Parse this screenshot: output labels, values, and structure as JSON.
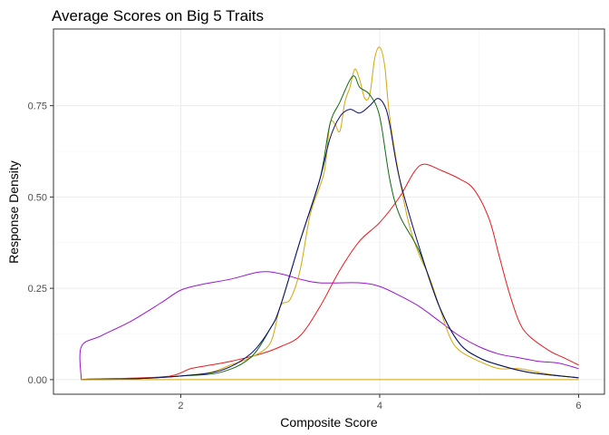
{
  "chart_data": {
    "type": "line",
    "title": "Average Scores on Big 5 Traits",
    "xlabel": "Composite Score",
    "ylabel": "Response Density",
    "xlim": [
      0.72,
      6.26
    ],
    "ylim": [
      -0.04,
      0.96
    ],
    "x_ticks": [
      2,
      4,
      6
    ],
    "y_ticks": [
      0.0,
      0.25,
      0.5,
      0.75
    ],
    "x_tick_labels": [
      "2",
      "4",
      "6"
    ],
    "y_tick_labels": [
      "0.00",
      "0.25",
      "0.50",
      "0.75"
    ],
    "grid": true,
    "legend": "none",
    "series": [
      {
        "name": "purple",
        "color": "#9b14d4",
        "points": [
          [
            1.0,
            0.0
          ],
          [
            1.0,
            0.09
          ],
          [
            1.2,
            0.12
          ],
          [
            1.5,
            0.16
          ],
          [
            1.8,
            0.21
          ],
          [
            2.0,
            0.245
          ],
          [
            2.2,
            0.26
          ],
          [
            2.5,
            0.275
          ],
          [
            2.8,
            0.295
          ],
          [
            3.0,
            0.29
          ],
          [
            3.2,
            0.275
          ],
          [
            3.4,
            0.265
          ],
          [
            3.8,
            0.265
          ],
          [
            4.0,
            0.255
          ],
          [
            4.2,
            0.23
          ],
          [
            4.4,
            0.2
          ],
          [
            4.6,
            0.16
          ],
          [
            4.8,
            0.12
          ],
          [
            5.0,
            0.09
          ],
          [
            5.2,
            0.07
          ],
          [
            5.4,
            0.06
          ],
          [
            5.6,
            0.05
          ],
          [
            5.8,
            0.045
          ],
          [
            6.0,
            0.03
          ]
        ]
      },
      {
        "name": "red",
        "color": "#e8191c",
        "points": [
          [
            1.0,
            0.0
          ],
          [
            1.1,
            0.002
          ],
          [
            1.5,
            0.004
          ],
          [
            1.9,
            0.01
          ],
          [
            2.1,
            0.03
          ],
          [
            2.3,
            0.04
          ],
          [
            2.5,
            0.05
          ],
          [
            2.8,
            0.07
          ],
          [
            3.0,
            0.09
          ],
          [
            3.2,
            0.12
          ],
          [
            3.4,
            0.2
          ],
          [
            3.6,
            0.3
          ],
          [
            3.8,
            0.38
          ],
          [
            4.0,
            0.43
          ],
          [
            4.2,
            0.5
          ],
          [
            4.35,
            0.57
          ],
          [
            4.45,
            0.59
          ],
          [
            4.6,
            0.575
          ],
          [
            4.8,
            0.55
          ],
          [
            4.95,
            0.52
          ],
          [
            5.1,
            0.44
          ],
          [
            5.2,
            0.34
          ],
          [
            5.3,
            0.24
          ],
          [
            5.4,
            0.16
          ],
          [
            5.5,
            0.12
          ],
          [
            5.7,
            0.08
          ],
          [
            5.85,
            0.06
          ],
          [
            6.0,
            0.04
          ]
        ]
      },
      {
        "name": "gold",
        "color": "#d4a60a",
        "points": [
          [
            1.0,
            0.0
          ],
          [
            1.5,
            0.002
          ],
          [
            2.0,
            0.01
          ],
          [
            2.3,
            0.02
          ],
          [
            2.5,
            0.04
          ],
          [
            2.7,
            0.06
          ],
          [
            2.9,
            0.1
          ],
          [
            3.0,
            0.2
          ],
          [
            3.1,
            0.22
          ],
          [
            3.2,
            0.3
          ],
          [
            3.3,
            0.45
          ],
          [
            3.4,
            0.53
          ],
          [
            3.45,
            0.58
          ],
          [
            3.5,
            0.7
          ],
          [
            3.55,
            0.7
          ],
          [
            3.6,
            0.68
          ],
          [
            3.65,
            0.76
          ],
          [
            3.7,
            0.8
          ],
          [
            3.75,
            0.85
          ],
          [
            3.8,
            0.82
          ],
          [
            3.85,
            0.77
          ],
          [
            3.9,
            0.78
          ],
          [
            3.95,
            0.88
          ],
          [
            4.0,
            0.91
          ],
          [
            4.05,
            0.86
          ],
          [
            4.1,
            0.72
          ],
          [
            4.2,
            0.55
          ],
          [
            4.3,
            0.42
          ],
          [
            4.4,
            0.34
          ],
          [
            4.5,
            0.28
          ],
          [
            4.6,
            0.2
          ],
          [
            4.7,
            0.12
          ],
          [
            4.8,
            0.08
          ],
          [
            5.0,
            0.05
          ],
          [
            5.2,
            0.03
          ],
          [
            5.4,
            0.03
          ],
          [
            5.7,
            0.015
          ],
          [
            6.0,
            0.005
          ]
        ]
      },
      {
        "name": "darkgreen",
        "color": "#0f6b10",
        "points": [
          [
            1.0,
            0.0
          ],
          [
            1.5,
            0.002
          ],
          [
            2.0,
            0.01
          ],
          [
            2.4,
            0.02
          ],
          [
            2.7,
            0.06
          ],
          [
            2.9,
            0.14
          ],
          [
            3.0,
            0.2
          ],
          [
            3.2,
            0.38
          ],
          [
            3.4,
            0.55
          ],
          [
            3.5,
            0.7
          ],
          [
            3.6,
            0.76
          ],
          [
            3.7,
            0.82
          ],
          [
            3.75,
            0.83
          ],
          [
            3.8,
            0.8
          ],
          [
            3.9,
            0.78
          ],
          [
            4.0,
            0.72
          ],
          [
            4.1,
            0.55
          ],
          [
            4.2,
            0.45
          ],
          [
            4.4,
            0.35
          ],
          [
            4.6,
            0.2
          ],
          [
            4.8,
            0.1
          ],
          [
            5.0,
            0.06
          ],
          [
            5.2,
            0.04
          ],
          [
            5.5,
            0.02
          ],
          [
            6.0,
            0.005
          ]
        ]
      },
      {
        "name": "navy",
        "color": "#0b0b6e",
        "points": [
          [
            1.0,
            0.0
          ],
          [
            1.5,
            0.002
          ],
          [
            2.0,
            0.01
          ],
          [
            2.4,
            0.025
          ],
          [
            2.7,
            0.07
          ],
          [
            2.9,
            0.14
          ],
          [
            3.0,
            0.2
          ],
          [
            3.2,
            0.38
          ],
          [
            3.4,
            0.55
          ],
          [
            3.5,
            0.66
          ],
          [
            3.6,
            0.72
          ],
          [
            3.7,
            0.74
          ],
          [
            3.8,
            0.73
          ],
          [
            3.9,
            0.75
          ],
          [
            3.98,
            0.77
          ],
          [
            4.05,
            0.75
          ],
          [
            4.1,
            0.7
          ],
          [
            4.2,
            0.55
          ],
          [
            4.4,
            0.36
          ],
          [
            4.6,
            0.2
          ],
          [
            4.8,
            0.1
          ],
          [
            5.0,
            0.06
          ],
          [
            5.2,
            0.04
          ],
          [
            5.5,
            0.02
          ],
          [
            6.0,
            0.005
          ]
        ]
      },
      {
        "name": "baseline",
        "color": "#d4a60a",
        "points": [
          [
            1.0,
            0.0
          ],
          [
            6.0,
            0.0
          ]
        ]
      }
    ]
  }
}
